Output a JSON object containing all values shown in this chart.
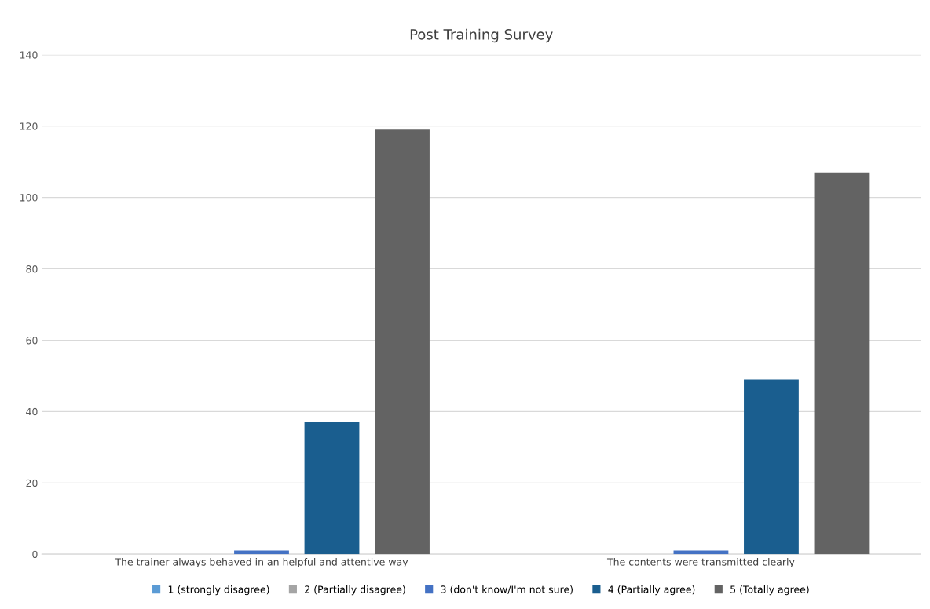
{
  "chart_data": {
    "type": "bar",
    "title": "Post Training Survey",
    "categories": [
      "The trainer always behaved in an helpful and attentive way",
      "The contents were transmitted clearly"
    ],
    "series": [
      {
        "name": "1 (strongly disagree)",
        "color": "#5b9bd5",
        "values": [
          0,
          0
        ]
      },
      {
        "name": "2 (Partially disagree)",
        "color": "#a5a5a5",
        "values": [
          0,
          0
        ]
      },
      {
        "name": "3 (don't know/I'm not sure)",
        "color": "#4472c4",
        "values": [
          1,
          1
        ]
      },
      {
        "name": "4 (Partially agree)",
        "color": "#1a5e8f",
        "values": [
          37,
          49
        ]
      },
      {
        "name": "5 (Totally agree)",
        "color": "#636363",
        "values": [
          119,
          107
        ]
      }
    ],
    "ylim": [
      0,
      140
    ],
    "yticks": [
      0,
      20,
      40,
      60,
      80,
      100,
      120,
      140
    ],
    "grid": "y",
    "legend": "bottom"
  }
}
